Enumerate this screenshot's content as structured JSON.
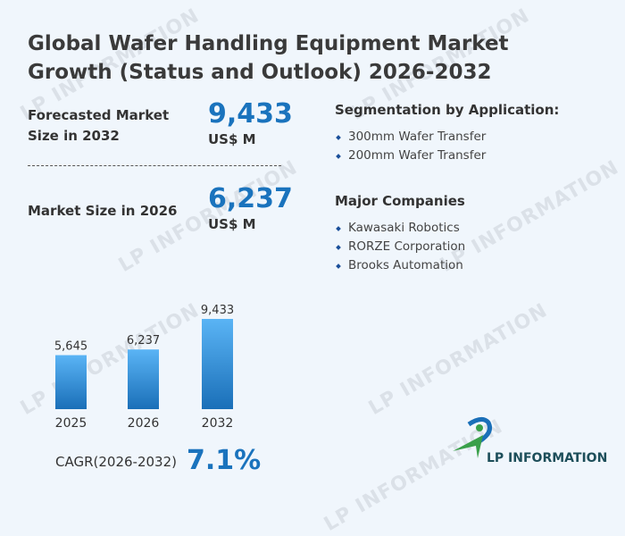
{
  "title": "Global Wafer Handling Equipment Market Growth (Status and Outlook) 2026-2032",
  "forecast": {
    "label": "Forecasted Market Size in 2032",
    "value": "9,433",
    "unit": "US$ M"
  },
  "current": {
    "label": "Market Size in 2026",
    "value": "6,237",
    "unit": "US$ M"
  },
  "segmentation": {
    "title": "Segmentation by Application:",
    "items": [
      "300mm Wafer Transfer",
      "200mm Wafer Transfer"
    ]
  },
  "companies": {
    "title": "Major Companies",
    "items": [
      "Kawasaki Robotics",
      "RORZE Corporation",
      "Brooks Automation"
    ]
  },
  "cagr": {
    "label": "CAGR(2026-2032)",
    "value": "7.1%"
  },
  "logo": {
    "text": "LP INFORMATION"
  },
  "watermark": "LP INFORMATION",
  "colors": {
    "accent": "#1a73bd",
    "bar_top": "#5ab4f5",
    "bar_bottom": "#1a6fb8"
  },
  "chart_data": {
    "type": "bar",
    "categories": [
      "2025",
      "2026",
      "2032"
    ],
    "values": [
      5645,
      6237,
      9433
    ],
    "data_labels": [
      "5,645",
      "6,237",
      "9,433"
    ],
    "ylim": [
      0,
      9433
    ],
    "grid": false
  }
}
